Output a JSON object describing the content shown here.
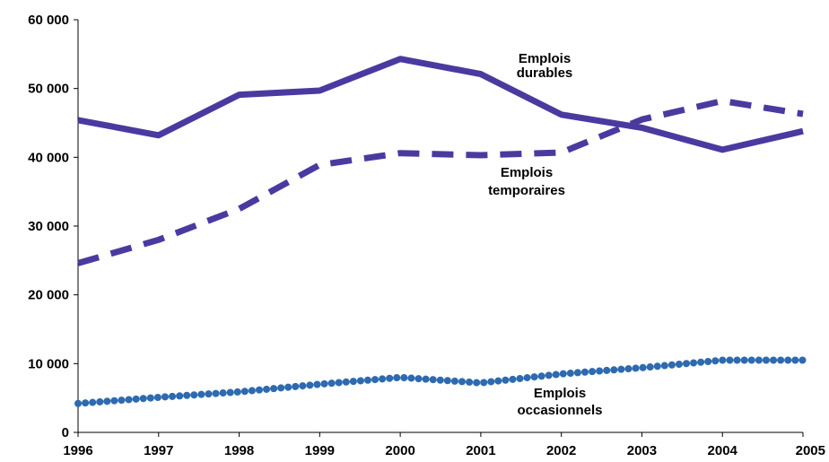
{
  "chart_data": {
    "type": "line",
    "title": "",
    "xlabel": "",
    "ylabel": "",
    "x": [
      1996,
      1997,
      1998,
      1999,
      2000,
      2001,
      2002,
      2003,
      2004,
      2005
    ],
    "x_tick_labels": [
      "1996",
      "1997",
      "1998",
      "1999",
      "2000",
      "2001",
      "2002",
      "2003",
      "2004",
      "2005"
    ],
    "ylim": [
      0,
      60000
    ],
    "y_ticks": [
      0,
      10000,
      20000,
      30000,
      40000,
      50000,
      60000
    ],
    "y_tick_labels": [
      "0",
      "10 000",
      "20 000",
      "30 000",
      "40 000",
      "50 000",
      "60 000"
    ],
    "grid": false,
    "legend": "none (series labelled directly on the lines)",
    "series": [
      {
        "name_lines": [
          "Emplois",
          "durables"
        ],
        "style": "solid",
        "color": "#4a3aa0",
        "values": [
          45400,
          43200,
          49100,
          49700,
          54300,
          52100,
          46200,
          44300,
          41100,
          43800
        ]
      },
      {
        "name_lines": [
          "Emplois",
          "temporaires"
        ],
        "style": "dashed",
        "color": "#4a3aa0",
        "values": [
          24600,
          28000,
          32500,
          38900,
          40600,
          40300,
          40700,
          45500,
          48200,
          46300
        ]
      },
      {
        "name_lines": [
          "Emplois",
          "occasionnels"
        ],
        "style": "dotted",
        "color": "#2e6ab0",
        "values": [
          4200,
          5100,
          5900,
          7000,
          8000,
          7200,
          8500,
          9400,
          10500,
          10500
        ]
      }
    ]
  }
}
